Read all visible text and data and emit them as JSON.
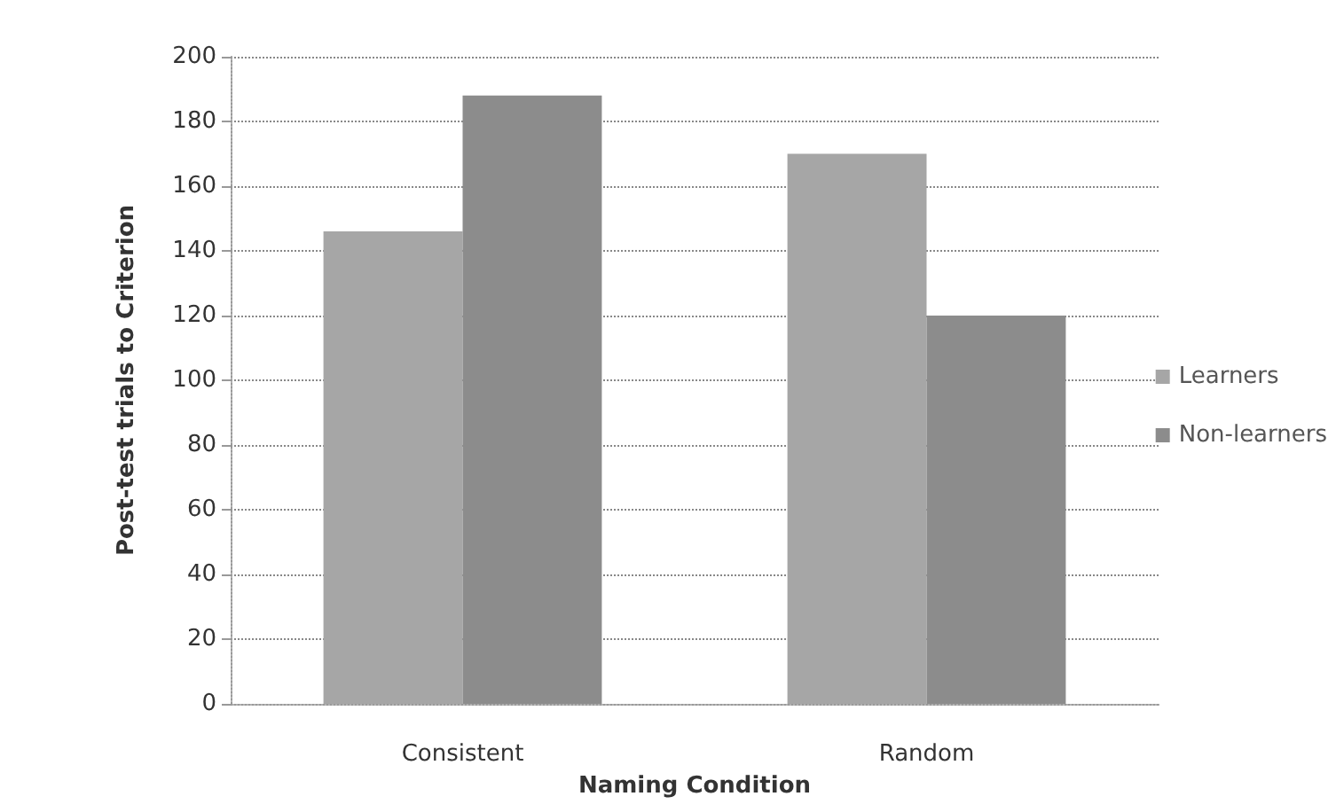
{
  "chart_data": {
    "type": "bar",
    "xlabel": "Naming Condition",
    "ylabel": "Post-test trials to Criterion",
    "categories": [
      "Consistent",
      "Random"
    ],
    "series": [
      {
        "name": "Learners",
        "color": "#a6a6a6",
        "values": [
          146,
          170
        ]
      },
      {
        "name": "Non-learners",
        "color": "#8c8c8c",
        "values": [
          188,
          120
        ]
      }
    ],
    "ylim": [
      0,
      200
    ],
    "yticks": [
      0,
      20,
      40,
      60,
      80,
      100,
      120,
      140,
      160,
      180,
      200
    ],
    "grid": "y",
    "legend": "right"
  }
}
